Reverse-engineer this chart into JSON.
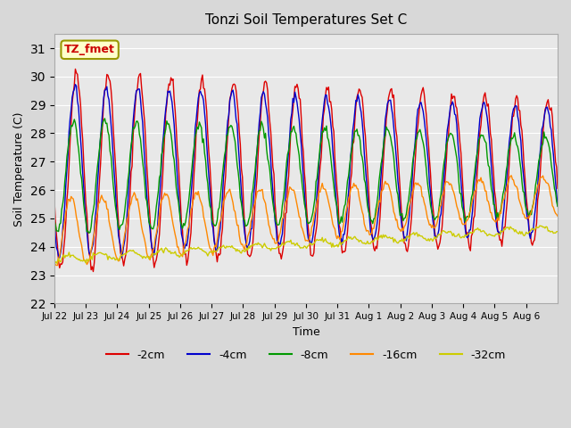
{
  "title": "Tonzi Soil Temperatures Set C",
  "xlabel": "Time",
  "ylabel": "Soil Temperature (C)",
  "ylim": [
    22.0,
    31.5
  ],
  "yticks": [
    22.0,
    23.0,
    24.0,
    25.0,
    26.0,
    27.0,
    28.0,
    29.0,
    30.0,
    31.0
  ],
  "annotation_label": "TZ_fmet",
  "annotation_color": "#cc0000",
  "annotation_bg": "#ffffcc",
  "annotation_border": "#999900",
  "colors": {
    "-2cm": "#dd0000",
    "-4cm": "#0000cc",
    "-8cm": "#009900",
    "-16cm": "#ff8800",
    "-32cm": "#cccc00"
  },
  "legend_labels": [
    "-2cm",
    "-4cm",
    "-8cm",
    "-16cm",
    "-32cm"
  ],
  "fig_bg": "#d8d8d8",
  "plot_bg": "#e8e8e8",
  "tick_labels": [
    "Jul 22",
    "Jul 23",
    "Jul 24",
    "Jul 25",
    "Jul 26",
    "Jul 27",
    "Jul 28",
    "Jul 29",
    "Jul 30",
    "Jul 31",
    "Aug 1",
    "Aug 2",
    "Aug 3",
    "Aug 4",
    "Aug 5",
    "Aug 6"
  ],
  "num_points": 480
}
